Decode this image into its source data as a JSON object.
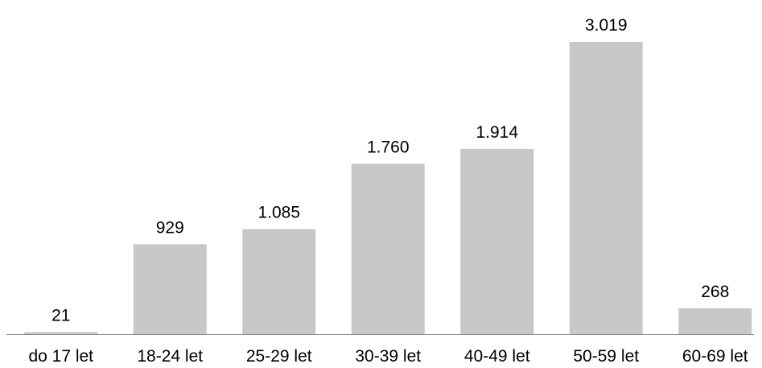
{
  "chart_data": {
    "type": "bar",
    "title": "",
    "xlabel": "",
    "ylabel": "",
    "categories": [
      "do 17 let",
      "18-24 let",
      "25-29 let",
      "30-39 let",
      "40-49 let",
      "50-59 let",
      "60-69 let"
    ],
    "values": [
      21,
      929,
      1085,
      1760,
      1914,
      3019,
      268
    ],
    "value_labels": [
      "21",
      "929",
      "1.085",
      "1.760",
      "1.914",
      "3.019",
      "268"
    ],
    "ylim": [
      0,
      3019
    ],
    "grid": false,
    "legend": "none",
    "colors": {
      "bar": "#c8c8c8",
      "axis": "#888888",
      "text": "#000000"
    }
  }
}
